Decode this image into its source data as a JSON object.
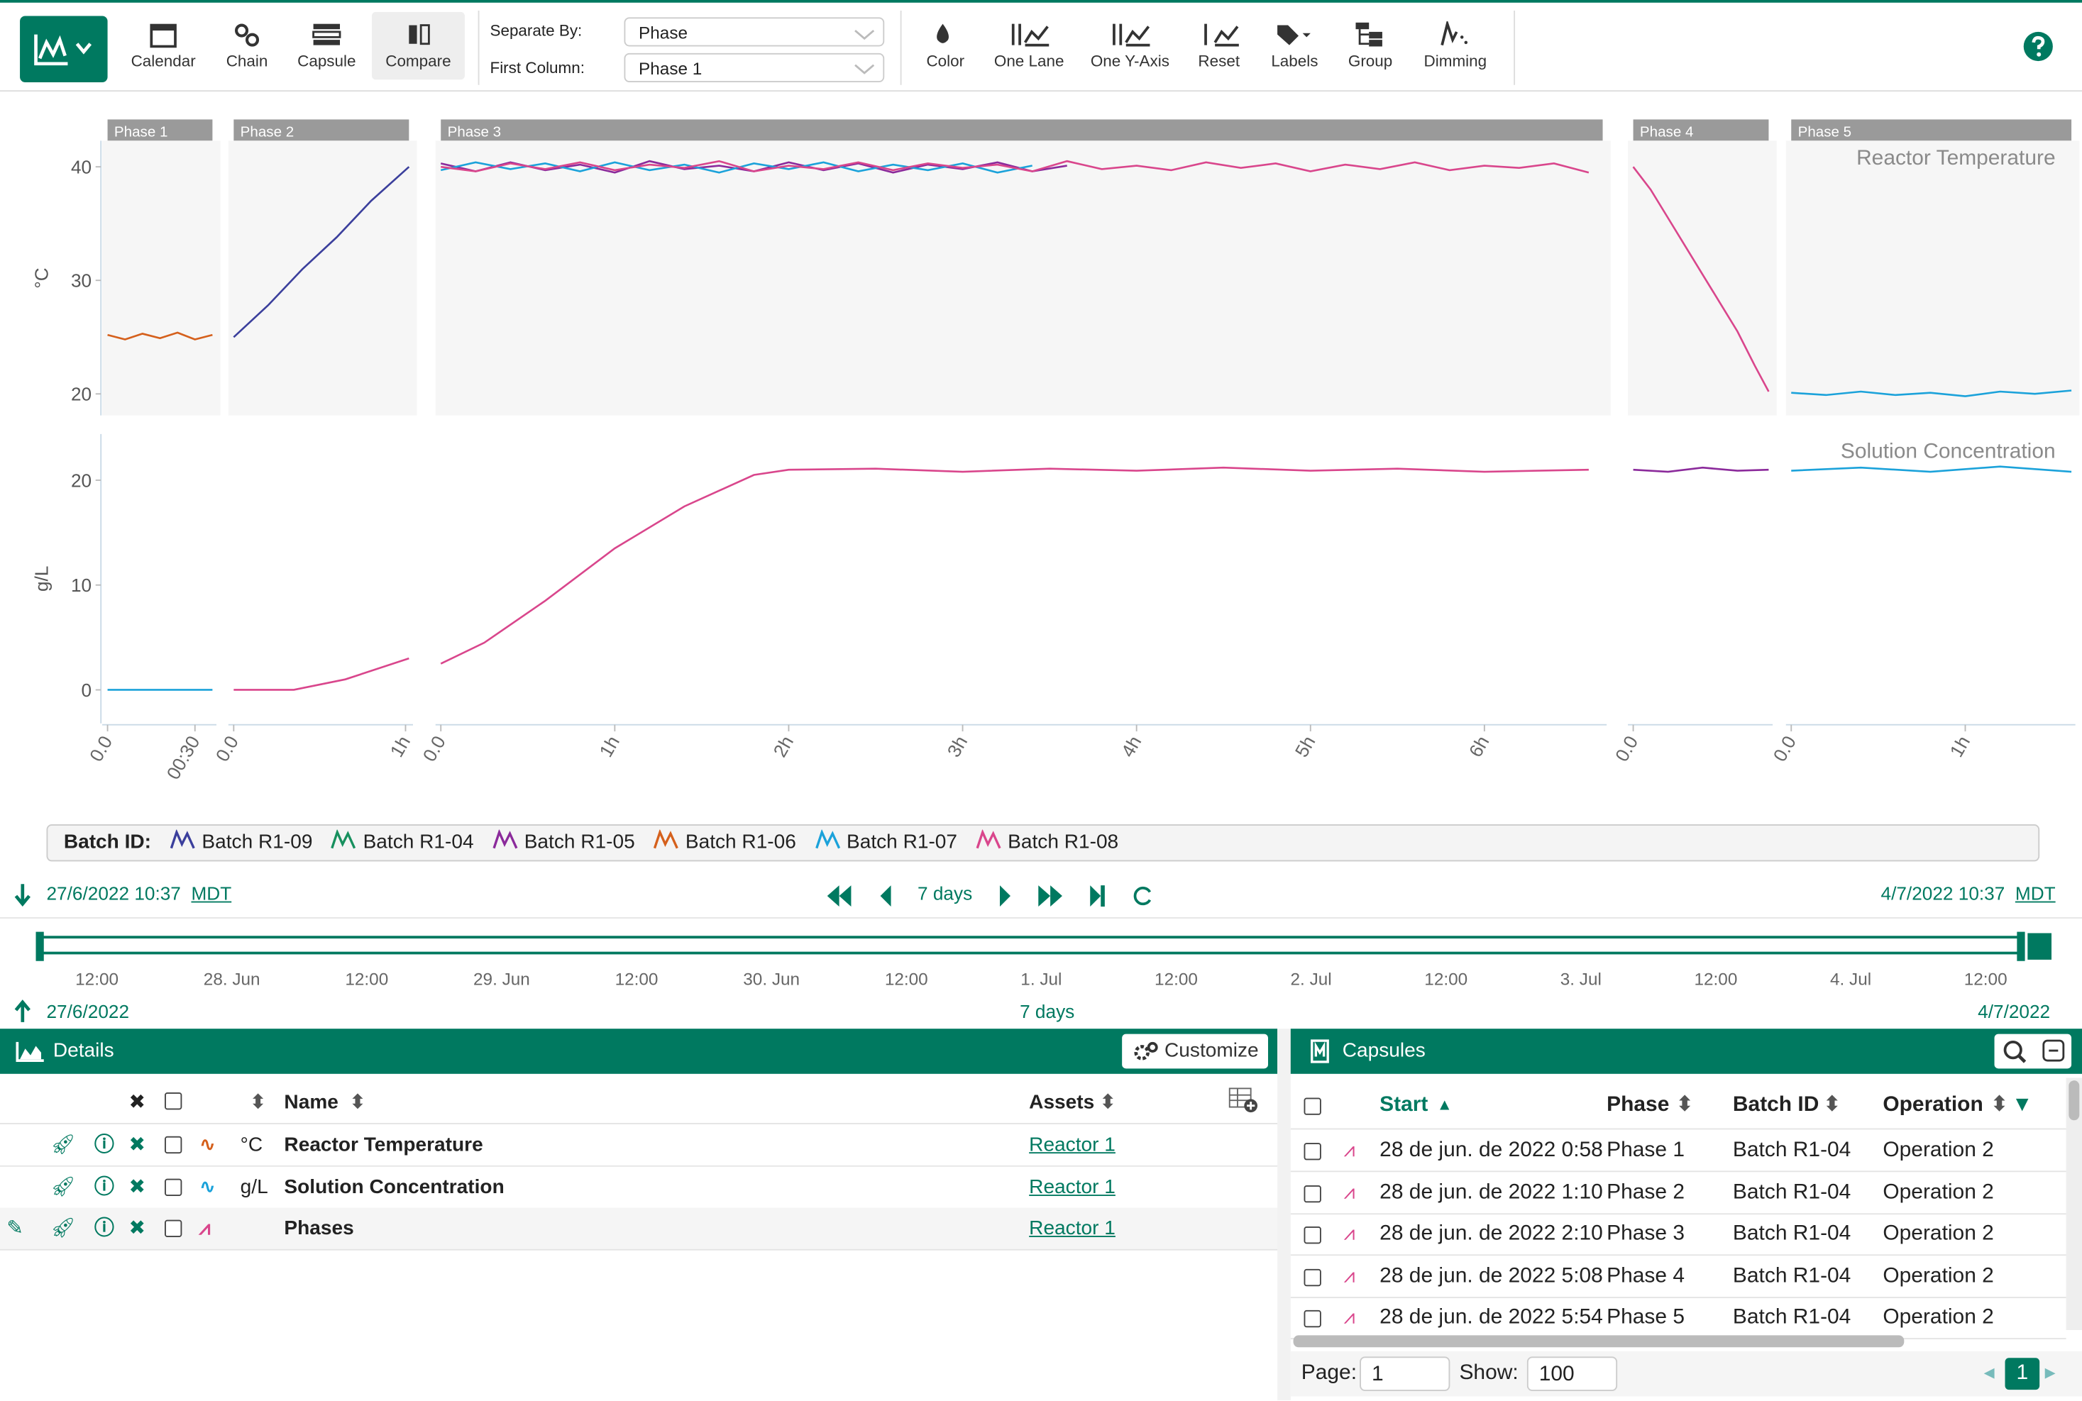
{
  "toolbar": {
    "buttons": [
      "Calendar",
      "Chain",
      "Capsule",
      "Compare"
    ],
    "separate_by_label": "Separate By:",
    "separate_by": "Phase",
    "first_column_label": "First Column:",
    "first_column": "Phase 1",
    "tools": [
      "Color",
      "One Lane",
      "One Y-Axis",
      "Reset",
      "Labels",
      "Group",
      "Dimming"
    ]
  },
  "chart_data": {
    "type": "line",
    "legend_title": "Batch ID:",
    "series": [
      {
        "name": "Batch R1-09",
        "color": "#3b3f9c"
      },
      {
        "name": "Batch R1-04",
        "color": "#17905e"
      },
      {
        "name": "Batch R1-05",
        "color": "#8b2a9b"
      },
      {
        "name": "Batch R1-06",
        "color": "#d5601c"
      },
      {
        "name": "Batch R1-07",
        "color": "#1ba2da"
      },
      {
        "name": "Batch R1-08",
        "color": "#d9468c"
      }
    ],
    "phases": [
      {
        "name": "Phase 1",
        "xlim": [
          0,
          0.6
        ],
        "xticks": [
          {
            "value": 0,
            "label": "0.0"
          },
          {
            "value": 0.5,
            "label": "00:30"
          }
        ]
      },
      {
        "name": "Phase 2",
        "xlim": [
          0,
          1.02
        ],
        "xticks": [
          {
            "value": 0,
            "label": "0.0"
          },
          {
            "value": 1,
            "label": "1h"
          }
        ]
      },
      {
        "name": "Phase 3",
        "xlim": [
          0,
          6.68
        ],
        "xticks": [
          {
            "value": 0,
            "label": "0.0"
          },
          {
            "value": 1,
            "label": "1h"
          },
          {
            "value": 2,
            "label": "2h"
          },
          {
            "value": 3,
            "label": "3h"
          },
          {
            "value": 4,
            "label": "4h"
          },
          {
            "value": 5,
            "label": "5h"
          },
          {
            "value": 6,
            "label": "6h"
          }
        ]
      },
      {
        "name": "Phase 4",
        "xlim": [
          0,
          0.78
        ],
        "xticks": [
          {
            "value": 0,
            "label": "0.0"
          }
        ]
      },
      {
        "name": "Phase 5",
        "xlim": [
          0,
          1.61
        ],
        "xticks": [
          {
            "value": 0,
            "label": "0.0"
          },
          {
            "value": 1,
            "label": "1h"
          }
        ]
      }
    ],
    "lanes": [
      {
        "title": "Reactor Temperature",
        "unit": "°C",
        "ylim": [
          18.1,
          42.3
        ],
        "yticks": [
          20,
          30,
          40
        ],
        "traces": [
          {
            "phase": 0,
            "series": 3,
            "x": [
              0,
              0.1,
              0.2,
              0.3,
              0.4,
              0.5,
              0.6
            ],
            "values": [
              25.2,
              24.8,
              25.3,
              24.9,
              25.4,
              24.8,
              25.2
            ]
          },
          {
            "phase": 1,
            "series": 0,
            "x": [
              0,
              0.2,
              0.4,
              0.6,
              0.8,
              1.02
            ],
            "values": [
              25,
              27.8,
              31,
              33.8,
              37,
              40
            ]
          },
          {
            "phase": 2,
            "series": 2,
            "x": [
              0,
              0.2,
              0.4,
              0.6,
              0.8,
              1,
              1.2,
              1.4,
              1.6,
              1.8,
              2,
              2.2,
              2.4,
              2.6,
              2.8,
              3,
              3.2,
              3.4,
              3.6
            ],
            "values": [
              40.3,
              39.6,
              40.4,
              39.7,
              40.2,
              39.5,
              40.5,
              39.8,
              40.1,
              39.6,
              40.4,
              39.7,
              40.3,
              39.5,
              40.2,
              39.8,
              40.4,
              39.6,
              40.1
            ]
          },
          {
            "phase": 2,
            "series": 4,
            "x": [
              0,
              0.2,
              0.4,
              0.6,
              0.8,
              1,
              1.2,
              1.4,
              1.6,
              1.8,
              2,
              2.2,
              2.4,
              2.6,
              2.8,
              3,
              3.2,
              3.4
            ],
            "values": [
              39.7,
              40.4,
              39.8,
              40.3,
              39.6,
              40.4,
              39.7,
              40.2,
              39.5,
              40.3,
              39.8,
              40.4,
              39.6,
              40.2,
              39.7,
              40.3,
              39.5,
              40.1
            ]
          },
          {
            "phase": 2,
            "series": 5,
            "x": [
              0,
              0.2,
              0.4,
              0.6,
              0.8,
              1,
              1.2,
              1.4,
              1.6,
              1.8,
              2,
              2.2,
              2.4,
              2.6,
              2.8,
              3,
              3.2,
              3.4,
              3.6,
              3.8,
              4,
              4.2,
              4.4,
              4.6,
              4.8,
              5,
              5.2,
              5.4,
              5.6,
              5.8,
              6,
              6.2,
              6.4,
              6.6
            ],
            "values": [
              40,
              39.6,
              40.3,
              39.8,
              40.4,
              39.7,
              40.2,
              39.9,
              40.5,
              39.6,
              40.1,
              39.8,
              40.4,
              39.7,
              40.3,
              39.9,
              40.2,
              39.6,
              40.5,
              39.8,
              40.1,
              39.7,
              40.4,
              39.9,
              40.3,
              39.6,
              40.2,
              39.8,
              40.4,
              39.7,
              40.1,
              39.9,
              40.3,
              39.5
            ]
          },
          {
            "phase": 3,
            "series": 5,
            "x": [
              0,
              0.1,
              0.2,
              0.3,
              0.4,
              0.5,
              0.6,
              0.7,
              0.78
            ],
            "values": [
              40,
              38,
              35.5,
              33,
              30.5,
              28,
              25.5,
              22.5,
              20.2
            ]
          },
          {
            "phase": 4,
            "series": 4,
            "x": [
              0,
              0.2,
              0.4,
              0.6,
              0.8,
              1,
              1.2,
              1.4,
              1.61
            ],
            "values": [
              20.1,
              19.9,
              20.2,
              19.9,
              20.1,
              19.8,
              20.2,
              20,
              20.3
            ]
          }
        ]
      },
      {
        "title": "Solution Concentration",
        "unit": "g/L",
        "ylim": [
          -3.2,
          24.4
        ],
        "yticks": [
          0,
          10,
          20
        ],
        "traces": [
          {
            "phase": 0,
            "series": 4,
            "x": [
              0,
              0.6
            ],
            "values": [
              0,
              0
            ]
          },
          {
            "phase": 1,
            "series": 5,
            "x": [
              0,
              0.35,
              0.65,
              1.02
            ],
            "values": [
              0,
              0,
              1,
              3
            ]
          },
          {
            "phase": 2,
            "series": 5,
            "x": [
              0,
              0.25,
              0.6,
              1,
              1.4,
              1.8,
              2,
              2.5,
              3,
              3.5,
              4,
              4.5,
              5,
              5.5,
              6,
              6.6
            ],
            "values": [
              2.5,
              4.5,
              8.5,
              13.5,
              17.5,
              20.5,
              21,
              21.1,
              20.8,
              21.1,
              20.9,
              21.2,
              20.9,
              21.1,
              20.8,
              21
            ]
          },
          {
            "phase": 3,
            "series": 2,
            "x": [
              0,
              0.2,
              0.4,
              0.6,
              0.78
            ],
            "values": [
              21,
              20.8,
              21.2,
              20.9,
              21
            ]
          },
          {
            "phase": 4,
            "series": 4,
            "x": [
              0,
              0.4,
              0.8,
              1.2,
              1.61
            ],
            "values": [
              20.9,
              21.2,
              20.8,
              21.3,
              20.8
            ]
          }
        ]
      }
    ]
  },
  "timeline": {
    "start": "27/6/2022 10:37",
    "tz": "MDT",
    "duration": "7 days",
    "end": "4/7/2022 10:37",
    "end_tz": "MDT",
    "axis_labels": [
      "12:00",
      "28. Jun",
      "12:00",
      "29. Jun",
      "12:00",
      "30. Jun",
      "12:00",
      "1. Jul",
      "12:00",
      "2. Jul",
      "12:00",
      "3. Jul",
      "12:00",
      "4. Jul",
      "12:00"
    ],
    "range_start": "27/6/2022",
    "range_duration": "7 days",
    "range_end": "4/7/2022"
  },
  "details": {
    "title": "Details",
    "customize": "Customize",
    "columns": [
      "Name",
      "Assets"
    ],
    "rows": [
      {
        "unit": "°C",
        "name": "Reactor Temperature",
        "asset": "Reactor 1"
      },
      {
        "unit": "g/L",
        "name": "Solution Concentration",
        "asset": "Reactor 1"
      },
      {
        "name": "Phases",
        "asset": "Reactor 1"
      }
    ]
  },
  "capsules": {
    "title": "Capsules",
    "columns": [
      "Start",
      "Phase",
      "Batch ID",
      "Operation"
    ],
    "rows": [
      [
        "28 de jun. de 2022 0:58",
        "Phase 1",
        "Batch R1-04",
        "Operation 2"
      ],
      [
        "28 de jun. de 2022 1:10",
        "Phase 2",
        "Batch R1-04",
        "Operation 2"
      ],
      [
        "28 de jun. de 2022 2:10",
        "Phase 3",
        "Batch R1-04",
        "Operation 2"
      ],
      [
        "28 de jun. de 2022 5:08",
        "Phase 4",
        "Batch R1-04",
        "Operation 2"
      ],
      [
        "28 de jun. de 2022 5:54",
        "Phase 5",
        "Batch R1-04",
        "Operation 2"
      ]
    ],
    "page_label": "Page:",
    "page": "1",
    "show_label": "Show:",
    "show": "100",
    "current_page": "1"
  }
}
